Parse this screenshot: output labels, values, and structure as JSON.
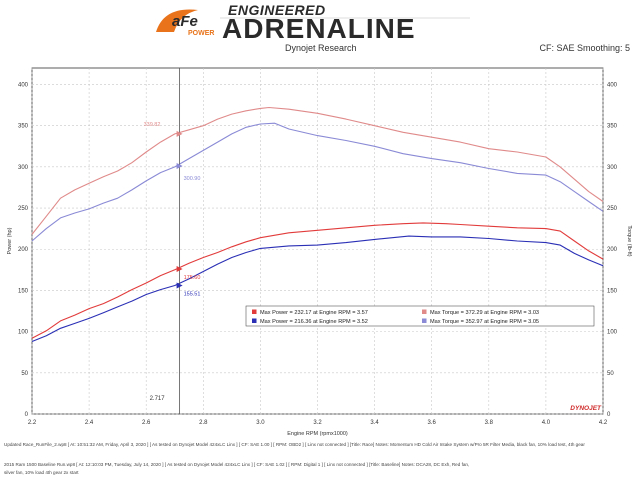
{
  "brand": {
    "logo_text": "aFe",
    "logo_sub": "POWER",
    "engineered": "ENGINEERED",
    "adrenaline": "ADRENALINE",
    "colors": {
      "orange": "#e8731a",
      "dark": "#2a2a2a"
    }
  },
  "header": {
    "left": "Dynojet Research",
    "right": "CF: SAE Smoothing: 5"
  },
  "watermark": "DYNOJET",
  "chart_data": {
    "type": "line",
    "xlabel": "Engine RPM (rpmx1000)",
    "ylabel_left": "Power (hp)",
    "ylabel_right": "Torque (lb-ft)",
    "xlim": [
      2.2,
      4.2
    ],
    "ylim": [
      0,
      420
    ],
    "xticks": [
      "2.2",
      "2.4",
      "2.6",
      "2.8",
      "3.0",
      "3.2",
      "3.4",
      "3.6",
      "3.8",
      "4.0",
      "4.2"
    ],
    "yticks": [
      "0",
      "50",
      "100",
      "150",
      "200",
      "250",
      "300",
      "350",
      "400"
    ],
    "cursor": {
      "x": 2.717,
      "label": "2.717"
    },
    "series": [
      {
        "name": "Max Power = 232.17 at Engine RPM = 3.57",
        "color": "#e23b3b",
        "kind": "power",
        "x": [
          2.2,
          2.25,
          2.3,
          2.35,
          2.4,
          2.45,
          2.5,
          2.55,
          2.6,
          2.65,
          2.7,
          2.75,
          2.8,
          2.85,
          2.9,
          2.95,
          3.0,
          3.1,
          3.2,
          3.3,
          3.4,
          3.5,
          3.57,
          3.65,
          3.7,
          3.8,
          3.9,
          4.0,
          4.05,
          4.1,
          4.15,
          4.2
        ],
        "y": [
          92,
          101,
          113,
          120,
          128,
          134,
          142,
          151,
          159,
          168,
          175,
          183,
          190,
          196,
          203,
          209,
          214,
          220,
          223,
          226,
          229,
          231,
          232,
          231,
          230,
          228,
          226,
          225,
          222,
          210,
          198,
          188
        ]
      },
      {
        "name": "Max Power = 216.36 at Engine RPM = 3.52",
        "color": "#2a2fb5",
        "kind": "power",
        "x": [
          2.2,
          2.25,
          2.3,
          2.35,
          2.4,
          2.45,
          2.5,
          2.55,
          2.6,
          2.65,
          2.7,
          2.75,
          2.8,
          2.85,
          2.9,
          2.95,
          3.0,
          3.1,
          3.2,
          3.3,
          3.4,
          3.52,
          3.6,
          3.7,
          3.8,
          3.9,
          4.0,
          4.05,
          4.1,
          4.15,
          4.2
        ],
        "y": [
          88,
          95,
          104,
          110,
          116,
          123,
          130,
          137,
          145,
          151,
          156,
          164,
          173,
          182,
          190,
          196,
          201,
          204,
          205,
          208,
          212,
          216,
          215,
          215,
          213,
          210,
          208,
          205,
          195,
          187,
          180
        ]
      },
      {
        "name": "Max Torque = 372.29 at Engine RPM = 3.03",
        "color": "#e08a8a",
        "kind": "torque",
        "x": [
          2.2,
          2.25,
          2.3,
          2.35,
          2.4,
          2.45,
          2.5,
          2.55,
          2.6,
          2.65,
          2.7,
          2.75,
          2.8,
          2.85,
          2.9,
          2.95,
          3.0,
          3.03,
          3.1,
          3.2,
          3.3,
          3.4,
          3.5,
          3.6,
          3.7,
          3.8,
          3.9,
          4.0,
          4.05,
          4.1,
          4.15,
          4.2
        ],
        "y": [
          218,
          240,
          262,
          272,
          280,
          288,
          295,
          305,
          318,
          330,
          340,
          345,
          350,
          358,
          364,
          368,
          371,
          372,
          370,
          365,
          358,
          350,
          342,
          336,
          330,
          322,
          318,
          312,
          300,
          285,
          270,
          258
        ]
      },
      {
        "name": "Max Torque = 352.97 at Engine RPM = 3.05",
        "color": "#8a8ad6",
        "kind": "torque",
        "x": [
          2.2,
          2.25,
          2.3,
          2.35,
          2.4,
          2.45,
          2.5,
          2.55,
          2.6,
          2.65,
          2.7,
          2.75,
          2.8,
          2.85,
          2.9,
          2.95,
          3.0,
          3.05,
          3.1,
          3.2,
          3.3,
          3.4,
          3.5,
          3.6,
          3.7,
          3.8,
          3.9,
          4.0,
          4.05,
          4.1,
          4.15,
          4.2
        ],
        "y": [
          210,
          225,
          238,
          244,
          249,
          256,
          262,
          272,
          283,
          293,
          300,
          310,
          320,
          330,
          340,
          348,
          352,
          353,
          346,
          338,
          332,
          325,
          316,
          310,
          305,
          298,
          292,
          290,
          282,
          270,
          258,
          246
        ]
      }
    ],
    "annotations": [
      {
        "text": "339.82",
        "x": 2.717,
        "y": 340,
        "color": "#e08a8a",
        "series": 2
      },
      {
        "text": "300.90",
        "x": 2.717,
        "y": 301,
        "color": "#8a8ad6",
        "series": 3
      },
      {
        "text": "175.60",
        "x": 2.717,
        "y": 176,
        "color": "#e23b3b",
        "series": 0
      },
      {
        "text": "155.51",
        "x": 2.717,
        "y": 156,
        "color": "#2a2fb5",
        "series": 1
      }
    ]
  },
  "footer": [
    "Updated Race_RunFile_2.wp8 [ At: 10:51:32 AM, Friday, April 3, 2020 ] [ As tested on Dynojet Model 424xLC Linx ] [ CF: SAE 1.00 ] [ RPM: OBD2 ] [ Linx not connected ] [Title: Race] Notes: Momentum HD Cold Air Intake System w/Pro 5R Filter Media, black fan, 10% load test, 4th gear",
    "2015 Ram 1500 Baseline Run.wp8 [ At: 12:10:03 PM, Tuesday, July 14, 2020 ] [ As tested on Dynojet Model 424xLC Linx ] [ CF: SAE 1.02 ] [ RPM: Digital 1 ] [ Linx not connected ] [Title: Baseline] Notes: DCA28, DC Exh, Red fan,",
    "silver fan, 10% load 4th gear 2x start"
  ]
}
